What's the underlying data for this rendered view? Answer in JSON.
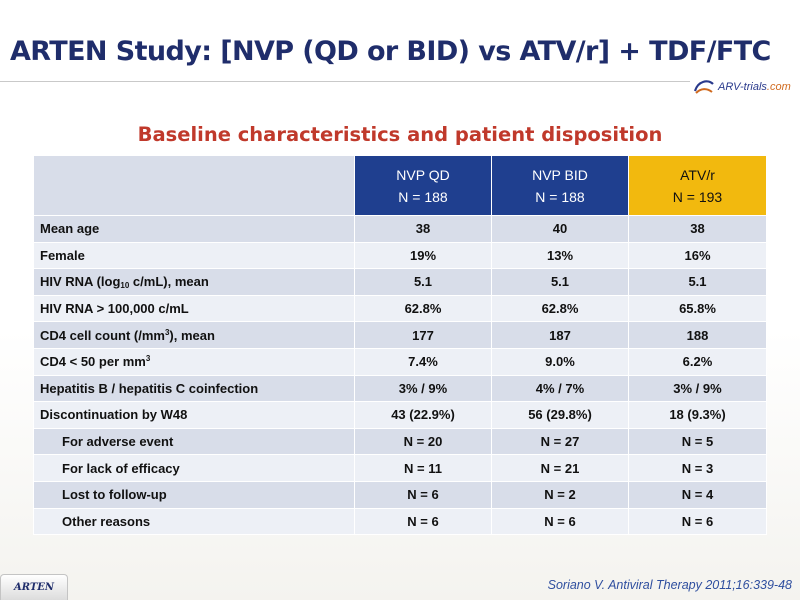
{
  "title": "ARTEN Study: [NVP (QD or BID) vs ATV/r] + TDF/FTC",
  "logo": {
    "text_main": "ARV-trials",
    "text_suffix": ".com"
  },
  "subtitle": "Baseline characteristics and patient disposition",
  "table": {
    "columns": [
      {
        "name": "NVP QD",
        "n": "N = 188"
      },
      {
        "name": "NVP BID",
        "n": "N = 188"
      },
      {
        "name": "ATV/r",
        "n": "N = 193"
      }
    ],
    "rows": [
      {
        "label": "Mean age",
        "values": [
          "38",
          "40",
          "38"
        ]
      },
      {
        "label": "Female",
        "values": [
          "19%",
          "13%",
          "16%"
        ]
      },
      {
        "label_pre": "HIV RNA (log",
        "label_sub": "10",
        "label_post": " c/mL), mean",
        "values": [
          "5.1",
          "5.1",
          "5.1"
        ]
      },
      {
        "label": "HIV RNA > 100,000 c/mL",
        "values": [
          "62.8%",
          "62.8%",
          "65.8%"
        ]
      },
      {
        "label_pre": "CD4 cell count (/mm",
        "label_sup": "3",
        "label_post": "), mean",
        "values": [
          "177",
          "187",
          "188"
        ]
      },
      {
        "label_pre": "CD4 < 50 per mm",
        "label_sup": "3",
        "label_post": "",
        "values": [
          "7.4%",
          "9.0%",
          "6.2%"
        ]
      },
      {
        "label": "Hepatitis B / hepatitis C coinfection",
        "values": [
          "3% / 9%",
          "4% / 7%",
          "3% / 9%"
        ]
      },
      {
        "label": "Discontinuation by W48",
        "values": [
          "43 (22.9%)",
          "56 (29.8%)",
          "18 (9.3%)"
        ]
      },
      {
        "label": "For adverse event",
        "values": [
          "N = 20",
          "N = 27",
          "N = 5"
        ]
      },
      {
        "label": "For lack of efficacy",
        "values": [
          "N = 11",
          "N = 21",
          "N = 3"
        ]
      },
      {
        "label": "Lost to follow-up",
        "values": [
          "N = 6",
          "N = 2",
          "N = 4"
        ]
      },
      {
        "label": "Other reasons",
        "values": [
          "N = 6",
          "N = 6",
          "N = 6"
        ]
      }
    ]
  },
  "footer": {
    "tab_label": "ARTEN",
    "citation": "Soriano V. Antiviral Therapy 2011;16:339-48"
  },
  "colors": {
    "title": "#1f2d6b",
    "subtitle": "#c0392b",
    "header_nvp": "#1f3f8f",
    "header_atv": "#f2b90e",
    "row_odd": "#d8dde9",
    "row_even": "#edf0f6"
  }
}
